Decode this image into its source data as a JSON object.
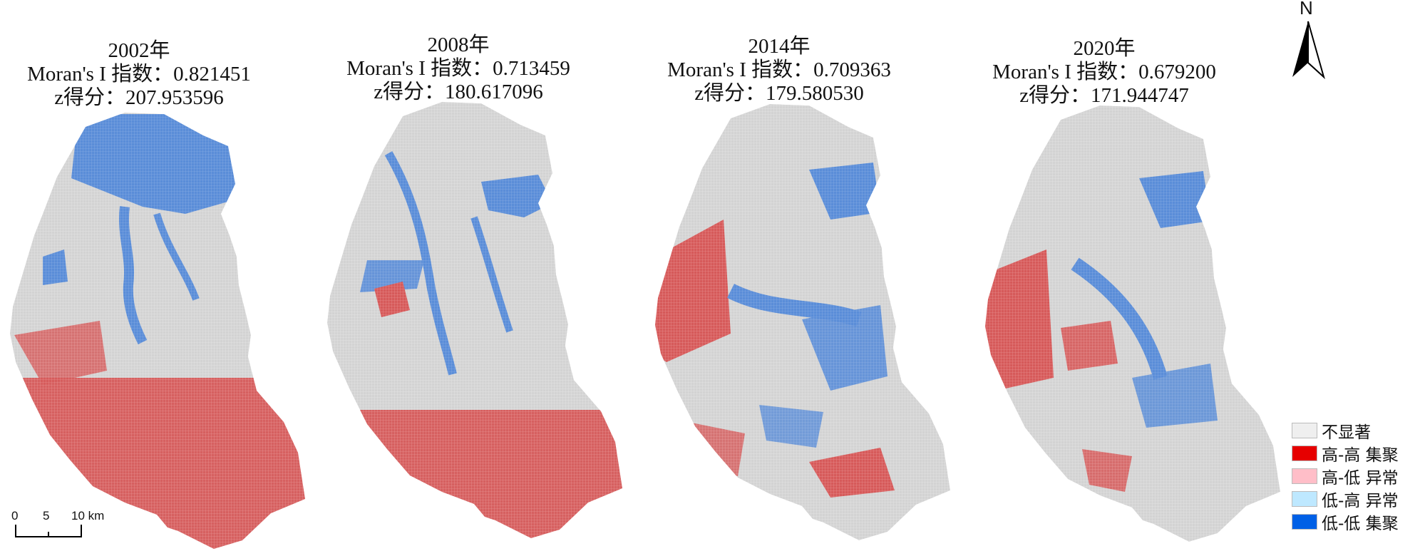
{
  "panels": [
    {
      "year": "2002年",
      "moran": "Moran's I  指数：0.821451",
      "z": "z得分：207.953596"
    },
    {
      "year": "2008年",
      "moran": "Moran's I  指数：0.713459",
      "z": "z得分：180.617096"
    },
    {
      "year": "2014年",
      "moran": "Moran's I  指数：0.709363",
      "z": "z得分：179.580530"
    },
    {
      "year": "2020年",
      "moran": "Moran's I  指数：0.679200",
      "z": "z得分：171.944747"
    }
  ],
  "north_arrow": {
    "label": "N",
    "icon": "north-arrow-icon"
  },
  "scale_bar": {
    "ticks": [
      "0",
      "5",
      "10 km"
    ]
  },
  "legend": [
    {
      "label": "不显著",
      "color": "#efefef"
    },
    {
      "label": "高-高  集聚",
      "color": "#e60000"
    },
    {
      "label": "高-低  异常",
      "color": "#ffbec8"
    },
    {
      "label": "低-高  异常",
      "color": "#bee8ff"
    },
    {
      "label": "低-低  集聚",
      "color": "#0060e6"
    }
  ],
  "map_colors": {
    "base": "#d6d6d6",
    "high_high": "#d96060",
    "low_low": "#5b8ed6"
  }
}
